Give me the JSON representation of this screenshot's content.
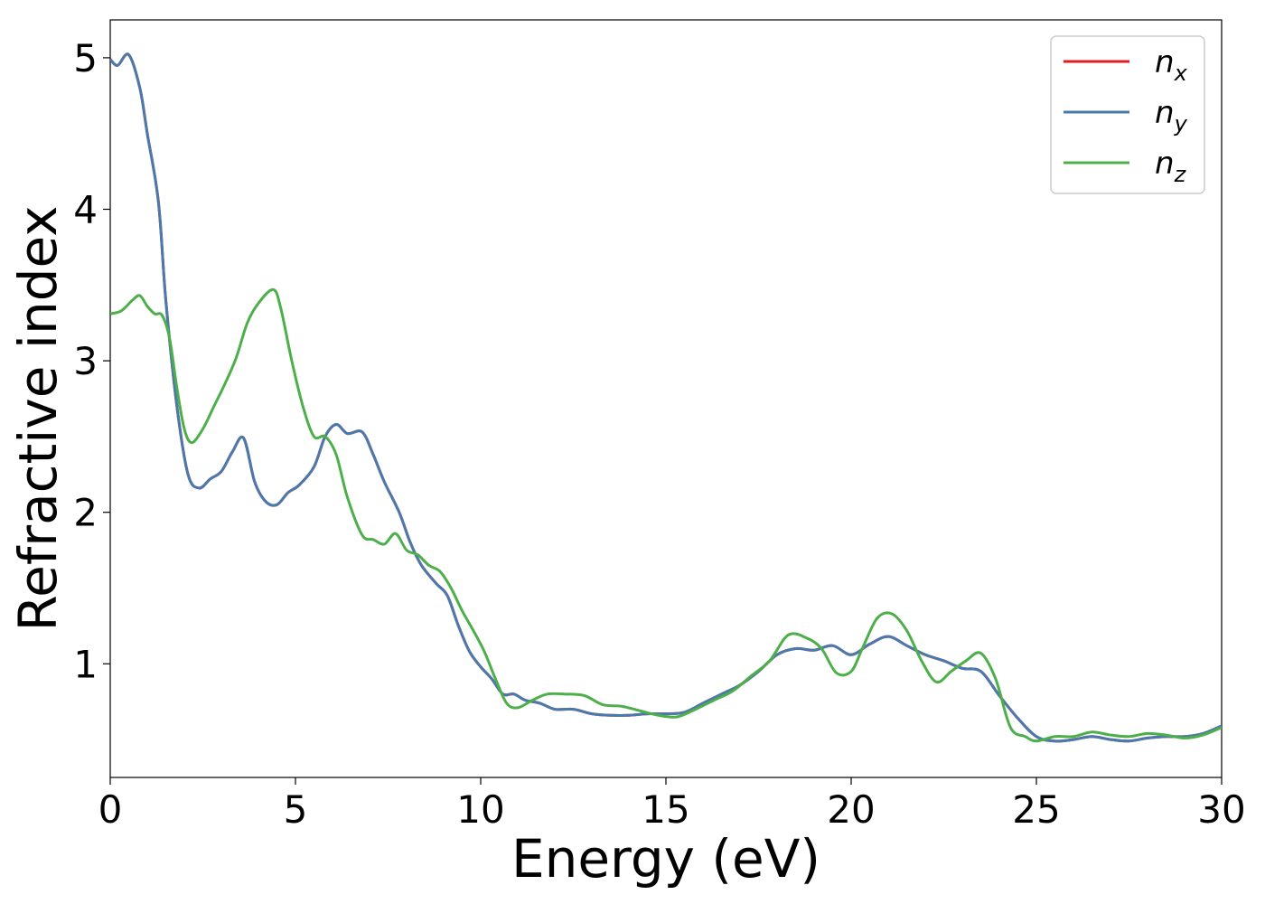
{
  "chart_data": {
    "type": "line",
    "title": "",
    "xlabel": "Energy (eV)",
    "ylabel": "Refractive index",
    "xlim": [
      0,
      30
    ],
    "ylim": [
      0.25,
      5.25
    ],
    "xticks": [
      0,
      5,
      10,
      15,
      20,
      25,
      30
    ],
    "yticks": [
      1,
      2,
      3,
      4,
      5
    ],
    "grid": false,
    "legend_position": "top-right",
    "series": [
      {
        "name": "n_x",
        "name_base": "n",
        "name_sub": "x",
        "color": "#e41a1c",
        "x": [
          0,
          0.2,
          0.5,
          0.8,
          1.0,
          1.3,
          1.5,
          1.8,
          2.1,
          2.4,
          2.7,
          3.0,
          3.3,
          3.6,
          3.9,
          4.2,
          4.5,
          4.8,
          5.1,
          5.5,
          5.8,
          6.1,
          6.4,
          6.8,
          7.1,
          7.4,
          7.8,
          8.1,
          8.4,
          8.8,
          9.1,
          9.4,
          9.7,
          10.0,
          10.3,
          10.6,
          10.9,
          11.2,
          11.6,
          12.0,
          12.5,
          13.0,
          13.5,
          14.0,
          14.5,
          15.0,
          15.5,
          16.0,
          16.5,
          17.0,
          17.5,
          18.0,
          18.5,
          19.0,
          19.5,
          20.0,
          20.5,
          21.0,
          21.5,
          22.0,
          22.5,
          23.0,
          23.5,
          24.0,
          24.5,
          25.0,
          25.5,
          26.0,
          26.5,
          27.0,
          27.5,
          28.0,
          28.5,
          29.0,
          29.5,
          30.0
        ],
        "y": [
          4.99,
          4.95,
          5.02,
          4.8,
          4.5,
          4.05,
          3.4,
          2.7,
          2.25,
          2.16,
          2.22,
          2.27,
          2.4,
          2.49,
          2.2,
          2.07,
          2.05,
          2.13,
          2.18,
          2.3,
          2.5,
          2.58,
          2.52,
          2.53,
          2.38,
          2.2,
          2.0,
          1.8,
          1.65,
          1.53,
          1.45,
          1.25,
          1.08,
          0.98,
          0.9,
          0.8,
          0.8,
          0.76,
          0.74,
          0.7,
          0.7,
          0.67,
          0.66,
          0.66,
          0.67,
          0.67,
          0.68,
          0.74,
          0.8,
          0.86,
          0.95,
          1.06,
          1.1,
          1.09,
          1.12,
          1.06,
          1.13,
          1.18,
          1.12,
          1.06,
          1.02,
          0.97,
          0.95,
          0.79,
          0.64,
          0.52,
          0.49,
          0.5,
          0.52,
          0.5,
          0.49,
          0.51,
          0.52,
          0.52,
          0.54,
          0.59
        ]
      },
      {
        "name": "n_y",
        "name_base": "n",
        "name_sub": "y",
        "color": "#4a7aad",
        "x": [
          0,
          0.2,
          0.5,
          0.8,
          1.0,
          1.3,
          1.5,
          1.8,
          2.1,
          2.4,
          2.7,
          3.0,
          3.3,
          3.6,
          3.9,
          4.2,
          4.5,
          4.8,
          5.1,
          5.5,
          5.8,
          6.1,
          6.4,
          6.8,
          7.1,
          7.4,
          7.8,
          8.1,
          8.4,
          8.8,
          9.1,
          9.4,
          9.7,
          10.0,
          10.3,
          10.6,
          10.9,
          11.2,
          11.6,
          12.0,
          12.5,
          13.0,
          13.5,
          14.0,
          14.5,
          15.0,
          15.5,
          16.0,
          16.5,
          17.0,
          17.5,
          18.0,
          18.5,
          19.0,
          19.5,
          20.0,
          20.5,
          21.0,
          21.5,
          22.0,
          22.5,
          23.0,
          23.5,
          24.0,
          24.5,
          25.0,
          25.5,
          26.0,
          26.5,
          27.0,
          27.5,
          28.0,
          28.5,
          29.0,
          29.5,
          30.0
        ],
        "y": [
          4.99,
          4.95,
          5.02,
          4.8,
          4.5,
          4.05,
          3.4,
          2.7,
          2.25,
          2.16,
          2.22,
          2.27,
          2.4,
          2.49,
          2.2,
          2.07,
          2.05,
          2.13,
          2.18,
          2.3,
          2.5,
          2.58,
          2.52,
          2.53,
          2.38,
          2.2,
          2.0,
          1.8,
          1.65,
          1.53,
          1.45,
          1.25,
          1.08,
          0.98,
          0.9,
          0.8,
          0.8,
          0.76,
          0.74,
          0.7,
          0.7,
          0.67,
          0.66,
          0.66,
          0.67,
          0.67,
          0.68,
          0.74,
          0.8,
          0.86,
          0.95,
          1.06,
          1.1,
          1.09,
          1.12,
          1.06,
          1.13,
          1.18,
          1.12,
          1.06,
          1.02,
          0.97,
          0.95,
          0.79,
          0.64,
          0.52,
          0.49,
          0.5,
          0.52,
          0.5,
          0.49,
          0.51,
          0.52,
          0.52,
          0.54,
          0.59
        ]
      },
      {
        "name": "n_z",
        "name_base": "n",
        "name_sub": "z",
        "color": "#4daf4a",
        "x": [
          0,
          0.3,
          0.6,
          0.8,
          1.0,
          1.2,
          1.4,
          1.6,
          1.8,
          2.0,
          2.2,
          2.5,
          2.8,
          3.1,
          3.4,
          3.7,
          4.0,
          4.4,
          4.6,
          4.9,
          5.2,
          5.5,
          5.8,
          6.1,
          6.4,
          6.8,
          7.1,
          7.4,
          7.7,
          8.0,
          8.3,
          8.6,
          8.9,
          9.2,
          9.5,
          9.8,
          10.1,
          10.4,
          10.7,
          11.0,
          11.4,
          11.8,
          12.3,
          12.8,
          13.3,
          13.8,
          14.3,
          14.8,
          15.3,
          15.8,
          16.3,
          16.8,
          17.3,
          17.8,
          18.3,
          18.8,
          19.2,
          19.6,
          20.0,
          20.3,
          20.7,
          21.1,
          21.5,
          21.9,
          22.3,
          22.7,
          23.1,
          23.5,
          23.9,
          24.3,
          24.7,
          25.0,
          25.5,
          26.0,
          26.5,
          27.0,
          27.5,
          28.0,
          28.5,
          29.0,
          29.5,
          30.0
        ],
        "y": [
          3.31,
          3.33,
          3.4,
          3.43,
          3.36,
          3.31,
          3.3,
          3.15,
          2.82,
          2.55,
          2.46,
          2.55,
          2.7,
          2.85,
          3.02,
          3.25,
          3.38,
          3.47,
          3.35,
          3.0,
          2.7,
          2.5,
          2.5,
          2.38,
          2.1,
          1.85,
          1.82,
          1.79,
          1.86,
          1.75,
          1.72,
          1.65,
          1.61,
          1.5,
          1.35,
          1.22,
          1.08,
          0.9,
          0.74,
          0.71,
          0.76,
          0.8,
          0.8,
          0.79,
          0.73,
          0.72,
          0.69,
          0.66,
          0.65,
          0.7,
          0.76,
          0.82,
          0.92,
          1.02,
          1.19,
          1.17,
          1.1,
          0.94,
          0.95,
          1.1,
          1.3,
          1.33,
          1.22,
          1.02,
          0.88,
          0.95,
          1.02,
          1.07,
          0.9,
          0.58,
          0.52,
          0.49,
          0.52,
          0.52,
          0.55,
          0.53,
          0.52,
          0.54,
          0.53,
          0.51,
          0.53,
          0.58
        ]
      }
    ]
  }
}
